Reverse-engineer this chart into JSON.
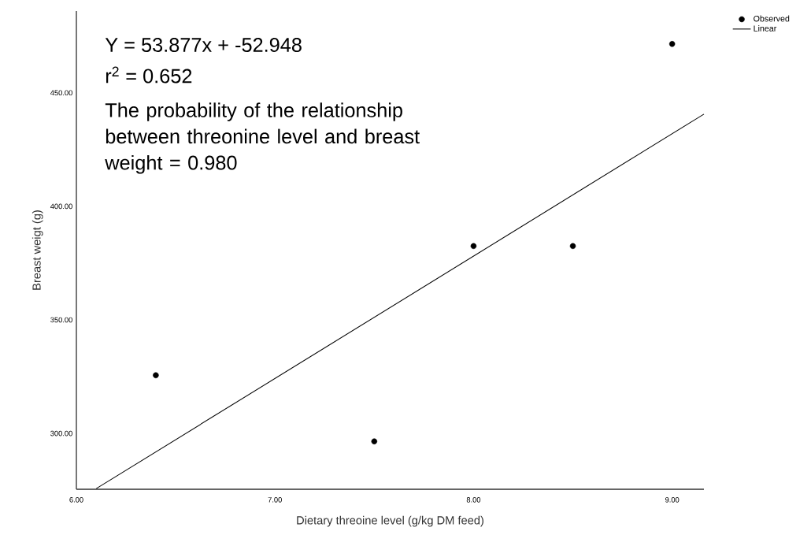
{
  "chart_data": {
    "type": "scatter",
    "xlabel": "Dietary threoine level (g/kg DM feed)",
    "ylabel": "Breast weigt (g)",
    "x": [
      6.4,
      7.5,
      8.0,
      8.5,
      9.0
    ],
    "series": [
      {
        "name": "Observed",
        "color": "#000000",
        "marker": "circle",
        "values": [
          325.6,
          296.5,
          382.5,
          382.5,
          471.5
        ]
      },
      {
        "name": "Linear",
        "type": "line",
        "color": "#000000",
        "marker": "none",
        "line_style": "solid",
        "x": [
          6.1,
          9.16
        ],
        "values": [
          275.7,
          440.6
        ]
      }
    ],
    "xlim": [
      6.0,
      9.16
    ],
    "ylim": [
      275.4,
      486
    ],
    "xticks": [
      {
        "value": 6,
        "label": "6.00"
      },
      {
        "value": 7,
        "label": "7.00"
      },
      {
        "value": 8,
        "label": "8.00"
      },
      {
        "value": 9,
        "label": "9.00"
      }
    ],
    "yticks": [
      {
        "value": 300,
        "label": "300.00"
      },
      {
        "value": 350,
        "label": "350.00"
      },
      {
        "value": 400,
        "label": "400.00"
      },
      {
        "value": 450,
        "label": "450.00"
      }
    ],
    "annotations": [
      "Y = 53.877x + -52.948",
      "r$^{2}$ = 0.652",
      "The probability of the relationship between threonine level and breast weight = 0.980"
    ],
    "grid": false,
    "legend": "top right"
  }
}
